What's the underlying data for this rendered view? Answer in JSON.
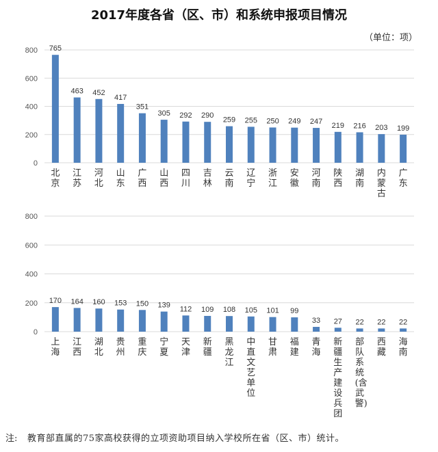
{
  "chart_data": [
    {
      "type": "bar",
      "title": "2017年度各省（区、市）和系统申报项目情况",
      "unit": "（单位：项）",
      "ylim": [
        0,
        800
      ],
      "yticks": [
        0,
        200,
        400,
        600,
        800
      ],
      "grid": true,
      "color": "#4f81bd",
      "categories": [
        "北京",
        "江苏",
        "河北",
        "山东",
        "广西",
        "山西",
        "四川",
        "吉林",
        "云南",
        "辽宁",
        "浙江",
        "安徽",
        "河南",
        "陕西",
        "湖南",
        "内蒙古",
        "广东"
      ],
      "values": [
        765,
        463,
        452,
        417,
        351,
        305,
        292,
        290,
        259,
        255,
        250,
        249,
        247,
        219,
        216,
        203,
        199
      ]
    },
    {
      "type": "bar",
      "ylim": [
        0,
        800
      ],
      "yticks": [
        0,
        200,
        400,
        600,
        800
      ],
      "grid": true,
      "color": "#4f81bd",
      "categories": [
        "上海",
        "江西",
        "湖北",
        "贵州",
        "重庆",
        "宁夏",
        "天津",
        "新疆",
        "黑龙江",
        "中直文艺单位",
        "甘肃",
        "福建",
        "青海",
        "新疆生产建设兵团",
        "部队系统(含武警)",
        "西藏",
        "海南"
      ],
      "values": [
        170,
        164,
        160,
        153,
        150,
        139,
        112,
        109,
        108,
        105,
        101,
        99,
        33,
        27,
        22,
        22,
        22
      ]
    }
  ],
  "note_label": "注:",
  "note": "教育部直属的75家高校获得的立项资助项目纳入学校所在省（区、市）统计。"
}
